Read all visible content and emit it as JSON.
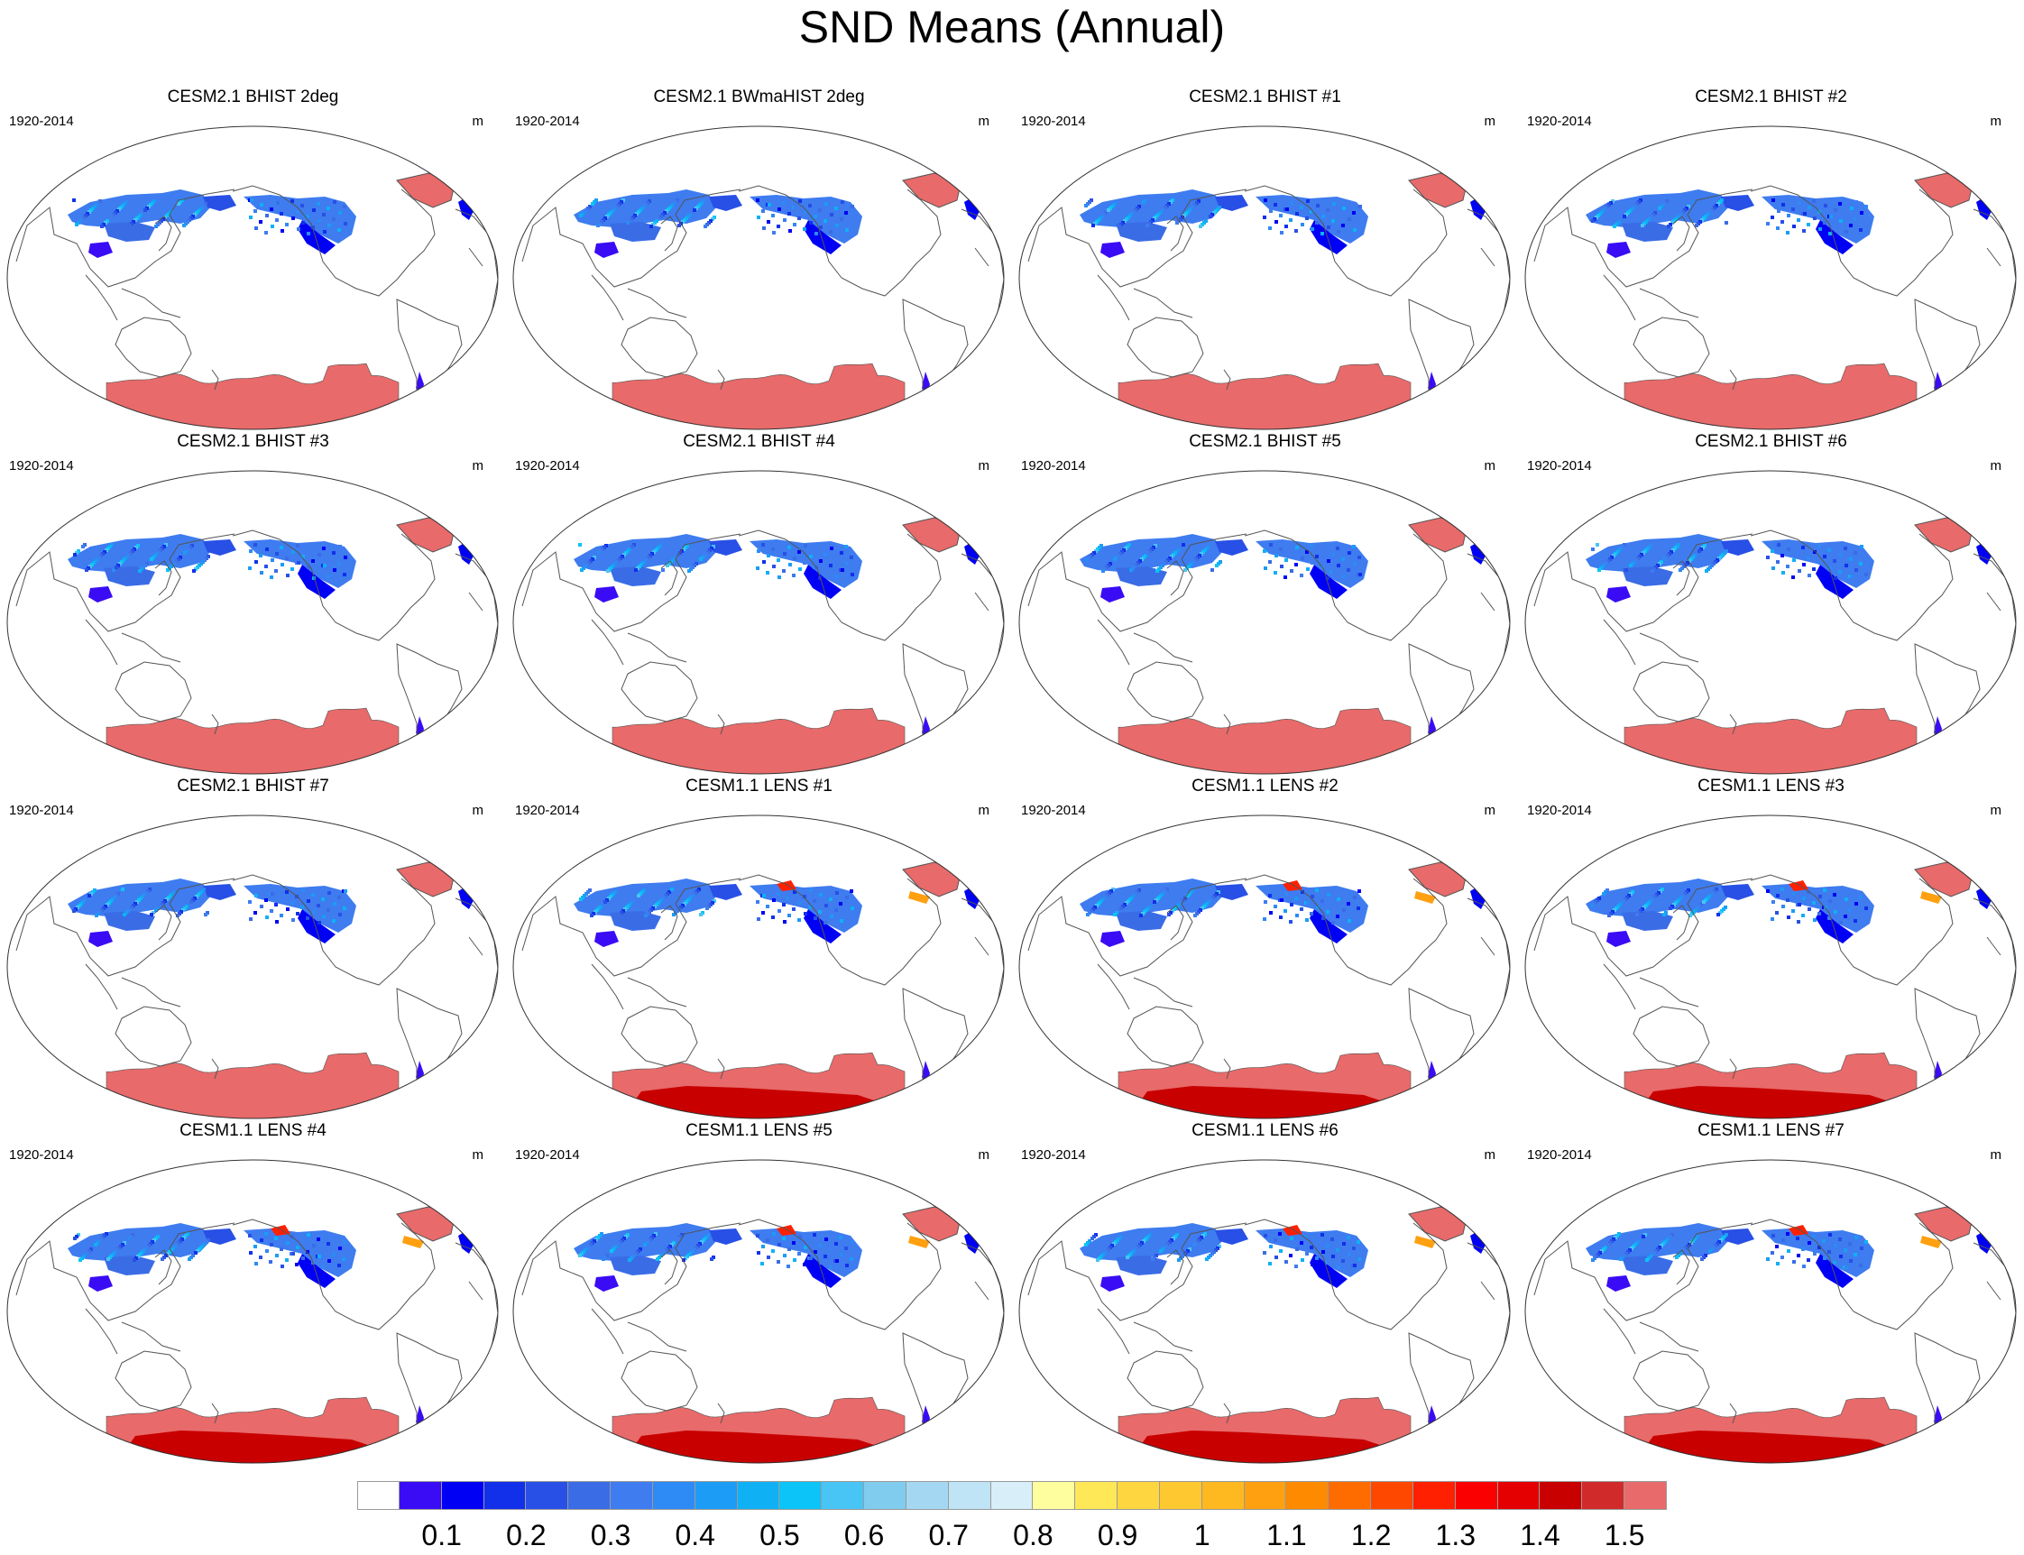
{
  "title": "SND Means (Annual)",
  "chart_data": {
    "type": "map-panels",
    "title": "SND Means (Annual)",
    "projection": "Robinson (Pacific-centered)",
    "variable": "SND",
    "units": "m",
    "period": "1920-2014",
    "panels": [
      {
        "title": "CESM2.1 BHIST 2deg",
        "period": "1920-2014",
        "units": "m",
        "model": "CESM2"
      },
      {
        "title": "CESM2.1 BWmaHIST 2deg",
        "period": "1920-2014",
        "units": "m",
        "model": "CESM2"
      },
      {
        "title": "CESM2.1 BHIST #1",
        "period": "1920-2014",
        "units": "m",
        "model": "CESM2"
      },
      {
        "title": "CESM2.1 BHIST #2",
        "period": "1920-2014",
        "units": "m",
        "model": "CESM2"
      },
      {
        "title": "CESM2.1 BHIST #3",
        "period": "1920-2014",
        "units": "m",
        "model": "CESM2"
      },
      {
        "title": "CESM2.1 BHIST #4",
        "period": "1920-2014",
        "units": "m",
        "model": "CESM2"
      },
      {
        "title": "CESM2.1 BHIST #5",
        "period": "1920-2014",
        "units": "m",
        "model": "CESM2"
      },
      {
        "title": "CESM2.1 BHIST #6",
        "period": "1920-2014",
        "units": "m",
        "model": "CESM2"
      },
      {
        "title": "CESM2.1 BHIST #7",
        "period": "1920-2014",
        "units": "m",
        "model": "CESM2"
      },
      {
        "title": "CESM1.1 LENS #1",
        "period": "1920-2014",
        "units": "m",
        "model": "CESM1"
      },
      {
        "title": "CESM1.1 LENS #2",
        "period": "1920-2014",
        "units": "m",
        "model": "CESM1"
      },
      {
        "title": "CESM1.1 LENS #3",
        "period": "1920-2014",
        "units": "m",
        "model": "CESM1"
      },
      {
        "title": "CESM1.1 LENS #4",
        "period": "1920-2014",
        "units": "m",
        "model": "CESM1"
      },
      {
        "title": "CESM1.1 LENS #5",
        "period": "1920-2014",
        "units": "m",
        "model": "CESM1"
      },
      {
        "title": "CESM1.1 LENS #6",
        "period": "1920-2014",
        "units": "m",
        "model": "CESM1"
      },
      {
        "title": "CESM1.1 LENS #7",
        "period": "1920-2014",
        "units": "m",
        "model": "CESM1"
      }
    ],
    "colorbar": {
      "levels": [
        "0.1",
        "0.2",
        "0.3",
        "0.4",
        "0.5",
        "0.6",
        "0.7",
        "0.8",
        "0.9",
        "1",
        "1.1",
        "1.2",
        "1.3",
        "1.4",
        "1.5"
      ],
      "colors": [
        "#ffffff",
        "#3a0cf5",
        "#0000f5",
        "#1230ea",
        "#2850e6",
        "#3a6ce6",
        "#3e7cf0",
        "#2e8af5",
        "#1c9cf5",
        "#10b0f5",
        "#0cc4f8",
        "#48c4f5",
        "#80ccee",
        "#a4d8f2",
        "#bee4f5",
        "#d8eef8",
        "#fefe9e",
        "#fee858",
        "#fed640",
        "#fec830",
        "#feb820",
        "#fea010",
        "#fe8a00",
        "#fe6c00",
        "#fe4800",
        "#fe2000",
        "#fa0000",
        "#e40000",
        "#c80000",
        "#d02a2a",
        "#e86a6a"
      ]
    }
  }
}
